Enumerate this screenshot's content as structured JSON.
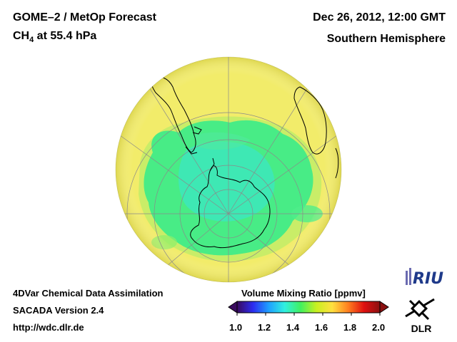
{
  "header": {
    "title": "GOME–2 / MetOp Forecast",
    "species_formula": "CH",
    "species_subscript": "4",
    "species_suffix": " at 55.4 hPa",
    "date": "Dec 26, 2012, 12:00 GMT",
    "region": "Southern Hemisphere"
  },
  "footer": {
    "line1": "4DVar Chemical Data Assimilation",
    "line2": "SACADA Version 2.4",
    "line3": "http://wdc.dlr.de"
  },
  "colorbar": {
    "title": "Volume Mixing Ratio [ppmv]",
    "ticks": [
      "1.0",
      "1.2",
      "1.4",
      "1.6",
      "1.8",
      "2.0"
    ],
    "min": 1.0,
    "max": 2.0,
    "colors": [
      "#3a0a5e",
      "#2c2cf0",
      "#1fa0ff",
      "#30f0e0",
      "#40f060",
      "#c8f020",
      "#ffe040",
      "#ff8020",
      "#e01010",
      "#8a1010"
    ]
  },
  "map": {
    "projection": "orthographic",
    "center": "South Pole",
    "ocean_value": 1.62,
    "vortex_value": 1.42,
    "core_value": 1.38,
    "colors": {
      "outer": "#f2ec6a",
      "mid": "#d8ef5c",
      "vortex": "#44ec94",
      "core": "#38eab8",
      "coast": "#000000",
      "grid": "#8a8a8a"
    }
  },
  "logos": {
    "riu": "RIU",
    "dlr": "DLR"
  }
}
